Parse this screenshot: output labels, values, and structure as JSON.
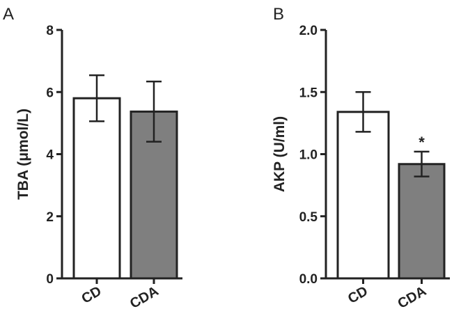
{
  "chart_data": [
    {
      "type": "bar",
      "panel": "A",
      "ylabel": "TBA (μmol/L)",
      "categories": [
        "CD",
        "CDA"
      ],
      "values": [
        5.8,
        5.37
      ],
      "errors": [
        0.74,
        0.97
      ],
      "ylim": [
        0,
        8
      ],
      "yticks": [
        "0",
        "2",
        "4",
        "6",
        "8"
      ],
      "annotations": [
        "",
        ""
      ],
      "colors": [
        "#ffffff",
        "#7f7f7f"
      ],
      "grid": false
    },
    {
      "type": "bar",
      "panel": "B",
      "ylabel": "AKP (U/ml)",
      "categories": [
        "CD",
        "CDA"
      ],
      "values": [
        1.34,
        0.92
      ],
      "errors": [
        0.16,
        0.1
      ],
      "ylim": [
        0,
        2
      ],
      "yticks": [
        "0.0",
        "0.5",
        "1.0",
        "1.5",
        "2.0"
      ],
      "annotations": [
        "",
        "*"
      ],
      "colors": [
        "#ffffff",
        "#7f7f7f"
      ],
      "grid": false
    }
  ]
}
